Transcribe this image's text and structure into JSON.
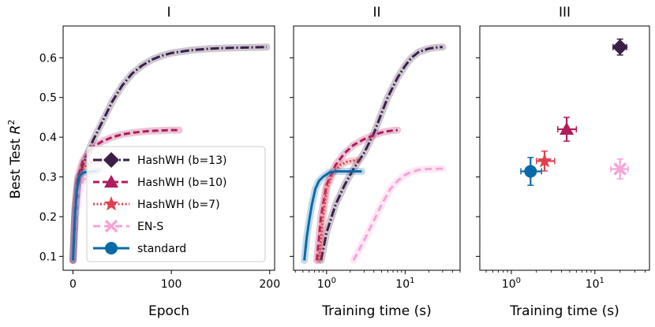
{
  "figure": {
    "ylabel": "Best Test R²",
    "panels": [
      {
        "title": "I",
        "xlabel": "Epoch"
      },
      {
        "title": "II",
        "xlabel": "Training time (s)"
      },
      {
        "title": "III",
        "xlabel": "Training time (s)"
      }
    ]
  },
  "colors": {
    "HashWH (b=13)": "#3b1f48",
    "HashWH (b=10)": "#b01c5c",
    "HashWH (b=7)": "#e0404e",
    "EN-S": "#f7a3d6",
    "standard": "#0a6aa8"
  },
  "chart_data": [
    {
      "type": "line",
      "panel": "I",
      "title": "I",
      "xlabel": "Epoch",
      "ylabel": "Best Test R²",
      "xlim": [
        -10,
        205
      ],
      "ylim": [
        0.065,
        0.68
      ],
      "x_ticks": [
        0,
        100,
        200
      ],
      "y_ticks": [
        0.1,
        0.2,
        0.3,
        0.4,
        0.5,
        0.6
      ],
      "legend": {
        "position": "lower left",
        "entries": [
          "HashWH (b=13)",
          "HashWH (b=10)",
          "HashWH (b=7)",
          "EN-S",
          "standard"
        ]
      },
      "series": [
        {
          "name": "HashWH (b=13)",
          "style": "dashdot",
          "marker": "diamond",
          "x": [
            0,
            2,
            5,
            10,
            15,
            20,
            30,
            40,
            50,
            60,
            70,
            80,
            90,
            100,
            120,
            140,
            160,
            180,
            197
          ],
          "y": [
            0.09,
            0.2,
            0.28,
            0.33,
            0.36,
            0.39,
            0.44,
            0.49,
            0.53,
            0.56,
            0.58,
            0.595,
            0.605,
            0.612,
            0.619,
            0.623,
            0.625,
            0.626,
            0.627
          ]
        },
        {
          "name": "HashWH (b=10)",
          "style": "dashed",
          "marker": "triangle",
          "x": [
            0,
            2,
            5,
            10,
            15,
            20,
            30,
            40,
            50,
            60,
            70,
            80,
            90,
            100,
            108
          ],
          "y": [
            0.09,
            0.22,
            0.3,
            0.34,
            0.36,
            0.375,
            0.39,
            0.4,
            0.407,
            0.411,
            0.414,
            0.416,
            0.417,
            0.418,
            0.418
          ]
        },
        {
          "name": "HashWH (b=7)",
          "style": "dotted",
          "marker": "star",
          "x": [
            0,
            2,
            5,
            10,
            15,
            20,
            25,
            30,
            35
          ],
          "y": [
            0.09,
            0.22,
            0.29,
            0.32,
            0.333,
            0.338,
            0.34,
            0.341,
            0.342
          ]
        },
        {
          "name": "EN-S",
          "style": "dashed",
          "marker": "x",
          "x": [
            0,
            3,
            6,
            10,
            15,
            20,
            25,
            30
          ],
          "y": [
            0.09,
            0.2,
            0.26,
            0.29,
            0.305,
            0.313,
            0.318,
            0.32
          ]
        },
        {
          "name": "standard",
          "style": "solid",
          "marker": "circle",
          "x": [
            0,
            2,
            4,
            6,
            10,
            15,
            20,
            25
          ],
          "y": [
            0.09,
            0.2,
            0.27,
            0.3,
            0.31,
            0.313,
            0.314,
            0.314
          ]
        }
      ]
    },
    {
      "type": "line",
      "panel": "II",
      "title": "II",
      "xlabel": "Training time (s)",
      "xscale": "log",
      "xlim": [
        0.38,
        50
      ],
      "ylim": [
        0.065,
        0.68
      ],
      "x_ticks": [
        "10⁰",
        "10¹"
      ],
      "series": [
        {
          "name": "HashWH (b=13)",
          "x": [
            0.85,
            1.0,
            1.3,
            1.7,
            2.2,
            3.0,
            4.0,
            5.0,
            6.0,
            8.0,
            10,
            12,
            15,
            20,
            25,
            30
          ],
          "y": [
            0.09,
            0.16,
            0.23,
            0.28,
            0.32,
            0.36,
            0.41,
            0.46,
            0.5,
            0.55,
            0.58,
            0.6,
            0.615,
            0.623,
            0.626,
            0.627
          ]
        },
        {
          "name": "HashWH (b=10)",
          "x": [
            0.75,
            0.85,
            1.0,
            1.3,
            1.7,
            2.2,
            3.0,
            4.0,
            5.0,
            6.0,
            7.0,
            8.0
          ],
          "y": [
            0.09,
            0.2,
            0.28,
            0.33,
            0.36,
            0.38,
            0.395,
            0.405,
            0.412,
            0.415,
            0.417,
            0.418
          ]
        },
        {
          "name": "HashWH (b=7)",
          "x": [
            0.8,
            0.9,
            1.0,
            1.2,
            1.5,
            1.8,
            2.2,
            2.5
          ],
          "y": [
            0.09,
            0.2,
            0.27,
            0.31,
            0.33,
            0.338,
            0.341,
            0.342
          ]
        },
        {
          "name": "EN-S",
          "x": [
            2.2,
            3.0,
            4.0,
            5.0,
            6.5,
            8.0,
            10,
            12,
            15,
            20,
            30
          ],
          "y": [
            0.09,
            0.14,
            0.19,
            0.23,
            0.27,
            0.29,
            0.305,
            0.313,
            0.318,
            0.32,
            0.321
          ]
        },
        {
          "name": "standard",
          "x": [
            0.52,
            0.56,
            0.6,
            0.65,
            0.72,
            0.8,
            0.9,
            1.1,
            1.4,
            1.8,
            2.3,
            2.8
          ],
          "y": [
            0.09,
            0.15,
            0.19,
            0.23,
            0.27,
            0.29,
            0.3,
            0.312,
            0.314,
            0.314,
            0.314,
            0.314
          ]
        }
      ]
    },
    {
      "type": "scatter",
      "panel": "III",
      "title": "III",
      "xlabel": "Training time (s)",
      "xscale": "log",
      "xlim": [
        0.42,
        45
      ],
      "ylim": [
        0.065,
        0.68
      ],
      "x_ticks": [
        "10⁰",
        "10¹"
      ],
      "points": [
        {
          "name": "HashWH (b=13)",
          "x": 20,
          "y": 0.627,
          "xerr": [
            16.5,
            24
          ],
          "yerr": 0.02
        },
        {
          "name": "HashWH (b=10)",
          "x": 4.6,
          "y": 0.42,
          "xerr": [
            3.6,
            6.0
          ],
          "yerr": 0.03
        },
        {
          "name": "HashWH (b=7)",
          "x": 2.5,
          "y": 0.34,
          "xerr": [
            2.0,
            3.3
          ],
          "yerr": 0.025
        },
        {
          "name": "EN-S",
          "x": 20,
          "y": 0.32,
          "xerr": [
            15.5,
            25
          ],
          "yerr": 0.025
        },
        {
          "name": "standard",
          "x": 1.7,
          "y": 0.314,
          "xerr": [
            1.3,
            2.3
          ],
          "yerr": 0.035
        }
      ]
    }
  ]
}
